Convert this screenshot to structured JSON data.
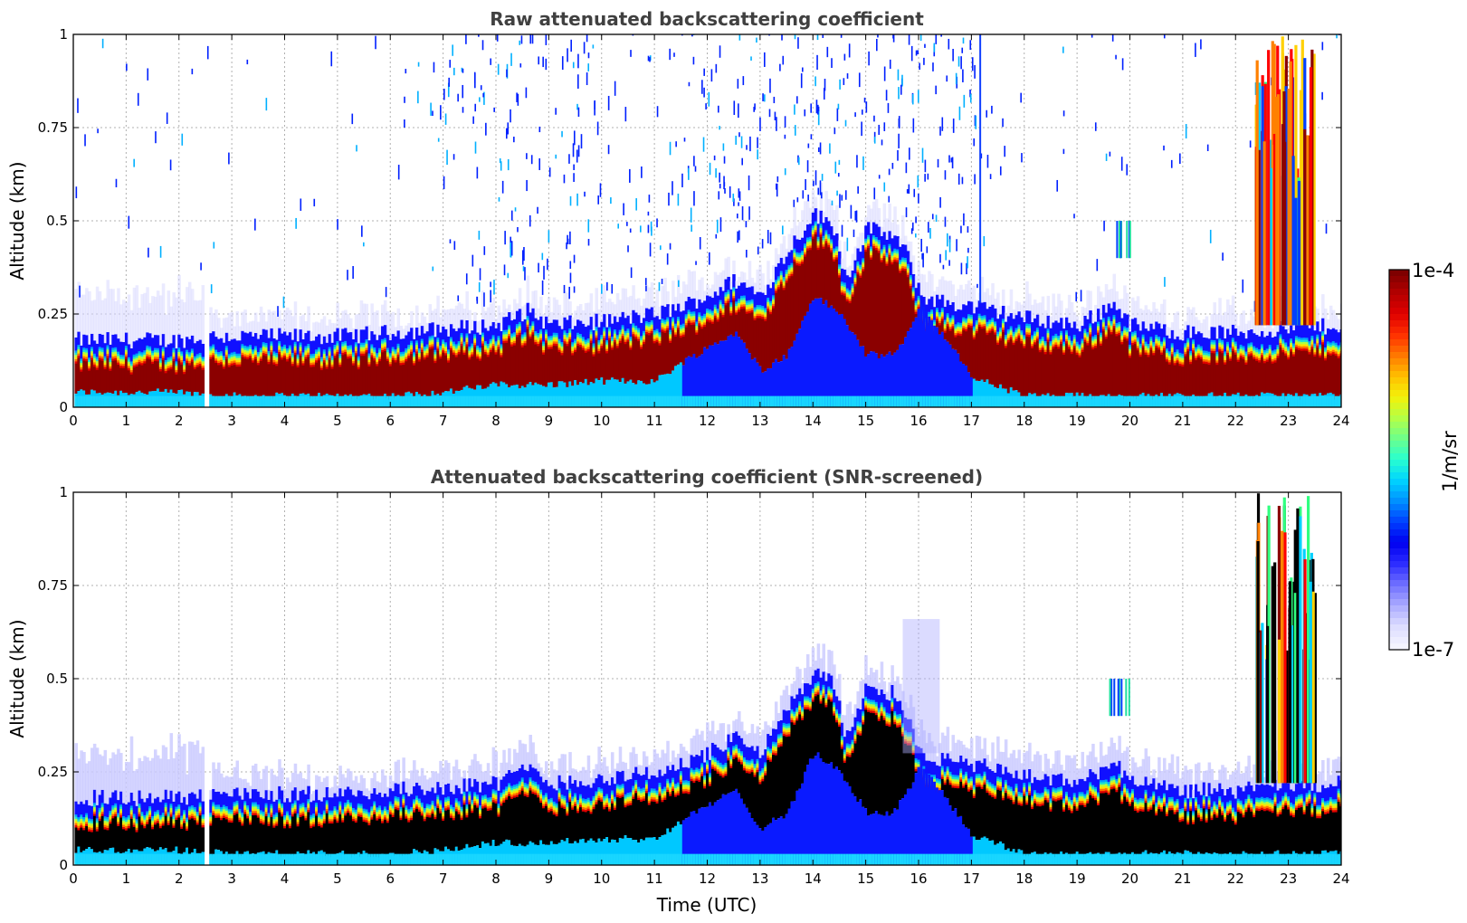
{
  "chart_data": [
    {
      "type": "heatmap",
      "title": "Raw attenuated backscattering coefficient",
      "xlabel": "",
      "ylabel": "Altitude (km)",
      "xlim": [
        0,
        24
      ],
      "ylim": [
        0,
        1
      ],
      "x_ticks": [
        "0",
        "1",
        "2",
        "3",
        "4",
        "5",
        "6",
        "7",
        "8",
        "9",
        "10",
        "11",
        "12",
        "13",
        "14",
        "15",
        "16",
        "17",
        "18",
        "19",
        "20",
        "21",
        "22",
        "23",
        "24"
      ],
      "y_ticks": [
        "0",
        "0.25",
        "0.5",
        "0.75",
        "1"
      ],
      "grid": true,
      "colormap": "jet",
      "data_gap_utc": [
        2.45,
        2.55
      ],
      "layer_top_km": [
        [
          0,
          0.18
        ],
        [
          1,
          0.18
        ],
        [
          2,
          0.18
        ],
        [
          2.6,
          0.19
        ],
        [
          3,
          0.19
        ],
        [
          4,
          0.19
        ],
        [
          5,
          0.19
        ],
        [
          6,
          0.2
        ],
        [
          7,
          0.21
        ],
        [
          8,
          0.22
        ],
        [
          8.6,
          0.26
        ],
        [
          9,
          0.22
        ],
        [
          10,
          0.23
        ],
        [
          11,
          0.25
        ],
        [
          11.5,
          0.27
        ],
        [
          12,
          0.3
        ],
        [
          12.5,
          0.34
        ],
        [
          13,
          0.3
        ],
        [
          13.5,
          0.42
        ],
        [
          14,
          0.52
        ],
        [
          14.4,
          0.48
        ],
        [
          14.6,
          0.34
        ],
        [
          15,
          0.48
        ],
        [
          15.5,
          0.46
        ],
        [
          15.8,
          0.4
        ],
        [
          16,
          0.3
        ],
        [
          16.5,
          0.28
        ],
        [
          17,
          0.27
        ],
        [
          18,
          0.24
        ],
        [
          19,
          0.22
        ],
        [
          19.7,
          0.28
        ],
        [
          20,
          0.22
        ],
        [
          21,
          0.2
        ],
        [
          22,
          0.2
        ],
        [
          24,
          0.22
        ]
      ],
      "layer_bottom_km": [
        [
          0,
          0.04
        ],
        [
          2,
          0.04
        ],
        [
          3,
          0.03
        ],
        [
          5,
          0.03
        ],
        [
          6,
          0.03
        ],
        [
          7,
          0.04
        ],
        [
          8,
          0.06
        ],
        [
          9,
          0.06
        ],
        [
          10,
          0.07
        ],
        [
          11,
          0.07
        ],
        [
          11.5,
          0.12
        ],
        [
          12,
          0.16
        ],
        [
          12.5,
          0.2
        ],
        [
          13,
          0.1
        ],
        [
          13.5,
          0.14
        ],
        [
          14,
          0.3
        ],
        [
          14.5,
          0.25
        ],
        [
          15,
          0.14
        ],
        [
          15.5,
          0.14
        ],
        [
          15.8,
          0.2
        ],
        [
          16,
          0.28
        ],
        [
          16.4,
          0.2
        ],
        [
          17,
          0.08
        ],
        [
          18,
          0.03
        ],
        [
          19,
          0.03
        ],
        [
          20,
          0.03
        ],
        [
          21,
          0.03
        ],
        [
          22,
          0.03
        ],
        [
          24,
          0.03
        ]
      ]
    },
    {
      "type": "heatmap",
      "title": "Attenuated backscattering coefficient (SNR-screened)",
      "xlabel": "Time (UTC)",
      "ylabel": "Altitude (km)",
      "xlim": [
        0,
        24
      ],
      "ylim": [
        0,
        1
      ],
      "x_ticks": [
        "0",
        "1",
        "2",
        "3",
        "4",
        "5",
        "6",
        "7",
        "8",
        "9",
        "10",
        "11",
        "12",
        "13",
        "14",
        "15",
        "16",
        "17",
        "18",
        "19",
        "20",
        "21",
        "22",
        "23",
        "24"
      ],
      "y_ticks": [
        "0",
        "0.25",
        "0.5",
        "0.75",
        "1"
      ],
      "grid": true,
      "colormap": "jet",
      "screened_value_color": "#000000"
    }
  ],
  "colorbar": {
    "max_label": "1e-4",
    "min_label": "1e-7",
    "unit_label": "1/m/sr",
    "scale": "log",
    "colors": [
      "#7f0000",
      "#b40000",
      "#e00000",
      "#ff3000",
      "#ff7a00",
      "#ffc000",
      "#f2f20a",
      "#b4ff46",
      "#6cff8c",
      "#28ffd0",
      "#00d4ff",
      "#0090ff",
      "#0040ff",
      "#0000f0",
      "#2b2bff",
      "#6e6eff",
      "#a9a9ff",
      "#dcdcff",
      "#f4f4ff"
    ]
  }
}
